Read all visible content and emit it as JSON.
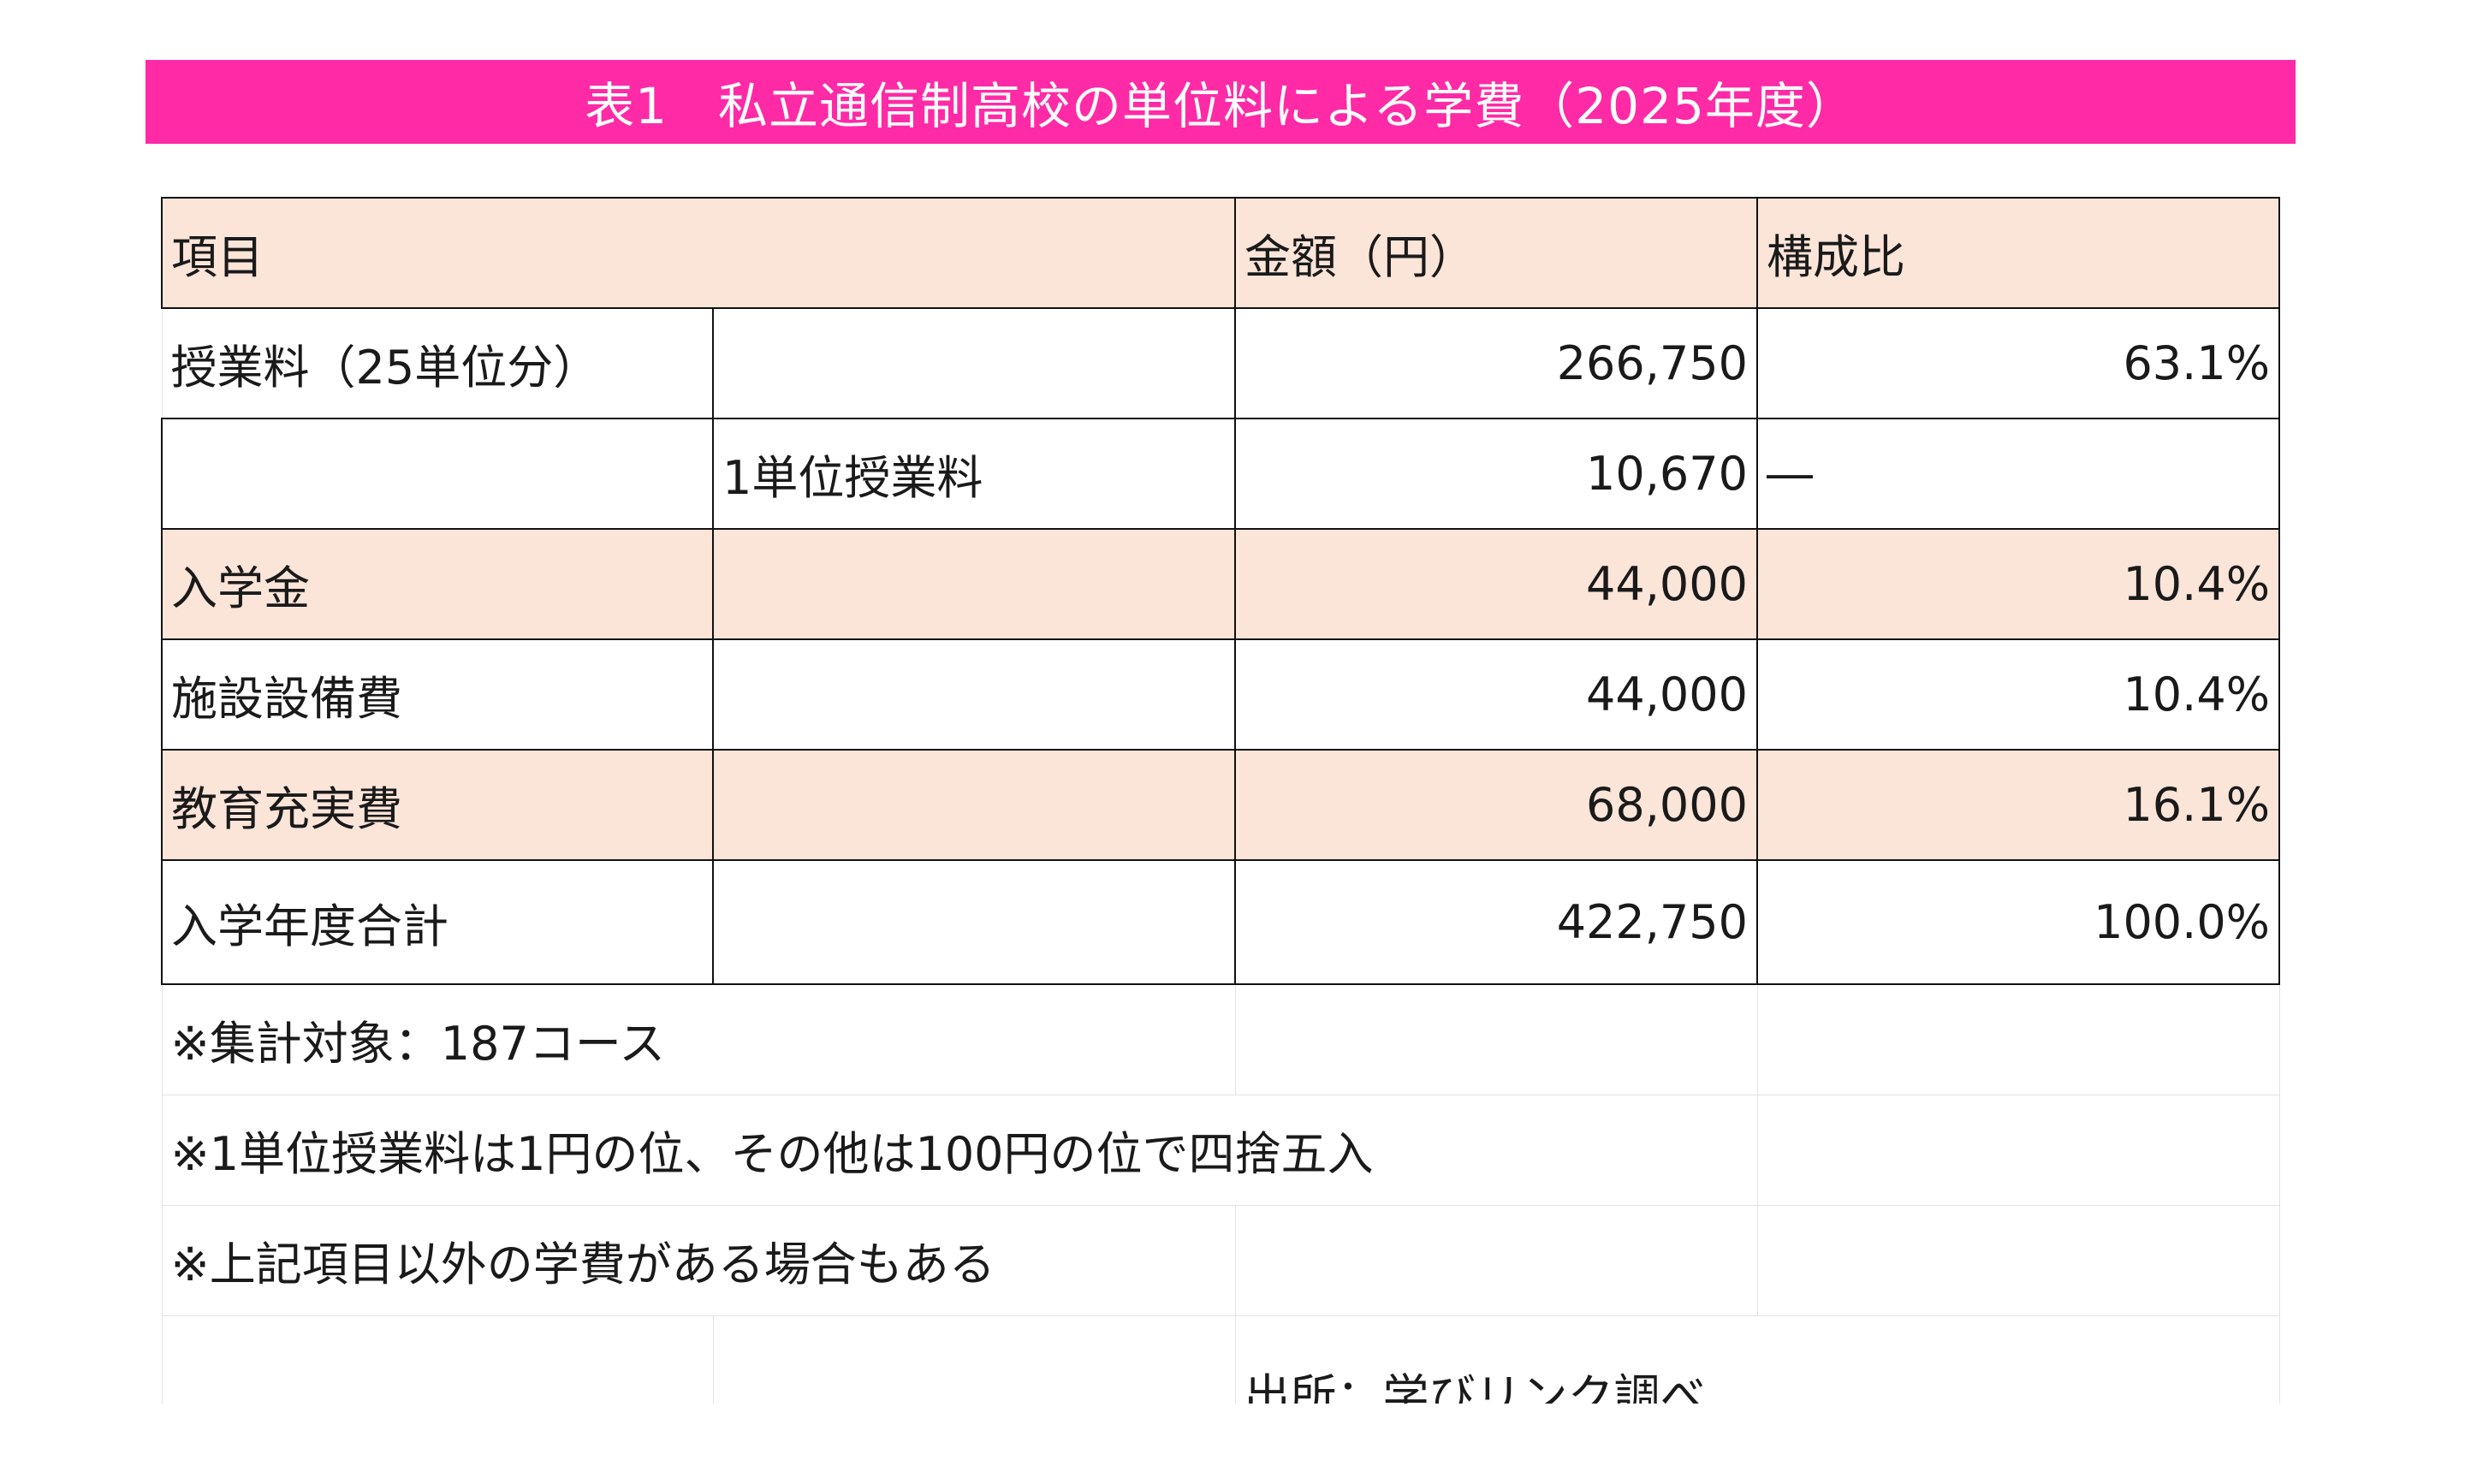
{
  "title": "表1　私立通信制高校の単位料による学費（2025年度）",
  "colors": {
    "banner": "#ff2aa6",
    "shade": "#fbe4d8"
  },
  "table": {
    "headers": [
      "項目",
      "金額（円）",
      "構成比"
    ],
    "rows": [
      {
        "item": "授業料（25単位分）",
        "sub": "",
        "amount": "266,750",
        "ratio": "63.1%"
      },
      {
        "item": "",
        "sub": "1単位授業料",
        "amount": "10,670",
        "ratio": "―"
      },
      {
        "item": "入学金",
        "sub": "",
        "amount": "44,000",
        "ratio": "10.4%"
      },
      {
        "item": "施設設備費",
        "sub": "",
        "amount": "44,000",
        "ratio": "10.4%"
      },
      {
        "item": "教育充実費",
        "sub": "",
        "amount": "68,000",
        "ratio": "16.1%"
      },
      {
        "item": "入学年度合計",
        "sub": "",
        "amount": "422,750",
        "ratio": "100.0%"
      }
    ]
  },
  "notes": [
    "※集計対象：187コース",
    "※1単位授業料は1円の位、その他は100円の位で四捨五入",
    "※上記項目以外の学費がある場合もある"
  ],
  "source": "出所：学びリンク調べ"
}
